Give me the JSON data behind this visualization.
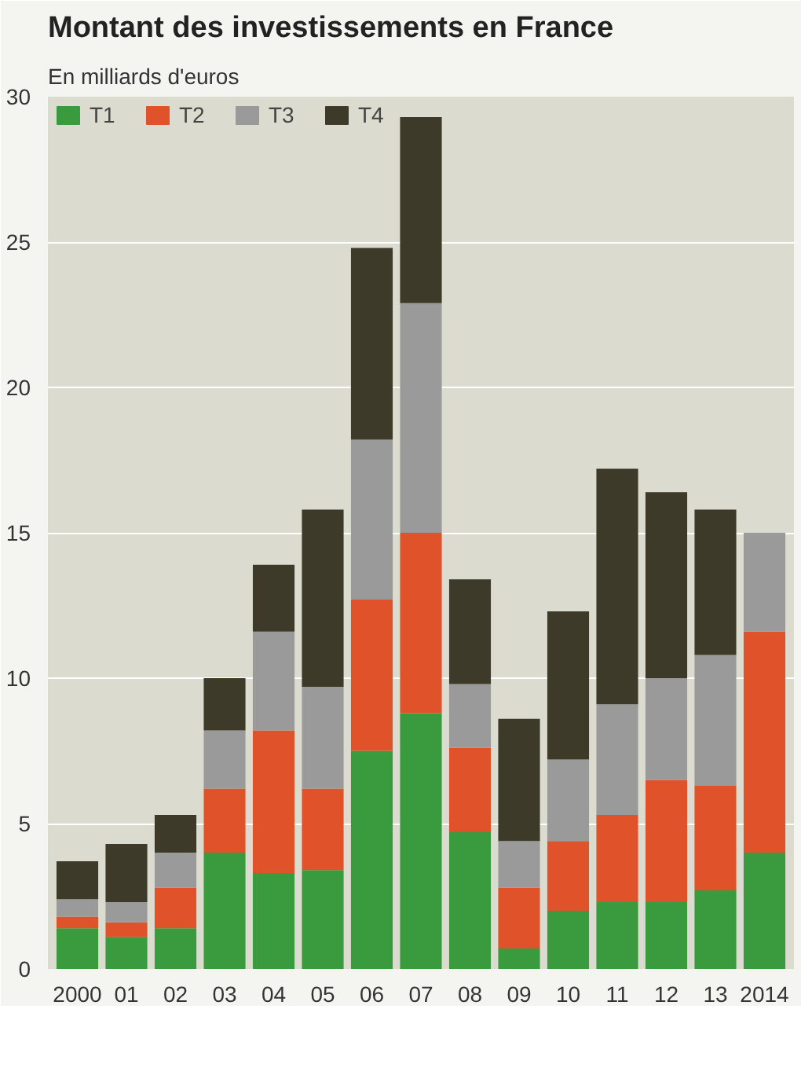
{
  "chart_data": {
    "type": "bar",
    "stacked": true,
    "title": "Montant des investissements en France",
    "subtitle": "En milliards d'euros",
    "categories": [
      "2000",
      "01",
      "02",
      "03",
      "04",
      "05",
      "06",
      "07",
      "08",
      "09",
      "10",
      "11",
      "12",
      "13",
      "2014"
    ],
    "series": [
      {
        "name": "T1",
        "color": "#3a9a3e",
        "values": [
          1.4,
          1.1,
          1.4,
          4.0,
          3.3,
          3.4,
          7.5,
          8.8,
          4.7,
          0.7,
          2.0,
          2.3,
          2.3,
          2.7,
          4.0
        ]
      },
      {
        "name": "T2",
        "color": "#e0522a",
        "values": [
          0.4,
          0.5,
          1.4,
          2.2,
          4.9,
          2.8,
          5.2,
          6.2,
          2.9,
          2.1,
          2.4,
          3.0,
          4.2,
          3.6,
          7.6
        ]
      },
      {
        "name": "T3",
        "color": "#9a9a9a",
        "values": [
          0.6,
          0.7,
          1.2,
          2.0,
          3.4,
          3.5,
          5.5,
          7.9,
          2.2,
          1.6,
          2.8,
          3.8,
          3.5,
          4.5,
          3.4
        ]
      },
      {
        "name": "T4",
        "color": "#3e3a2a",
        "values": [
          1.3,
          2.0,
          1.3,
          1.8,
          2.3,
          6.1,
          6.6,
          6.4,
          3.6,
          4.2,
          5.1,
          8.1,
          6.4,
          5.0,
          null
        ]
      }
    ],
    "ylim": [
      0,
      30
    ],
    "yticks": [
      0,
      5,
      10,
      15,
      20,
      25,
      30
    ],
    "grid": "y",
    "legend": "top left"
  }
}
